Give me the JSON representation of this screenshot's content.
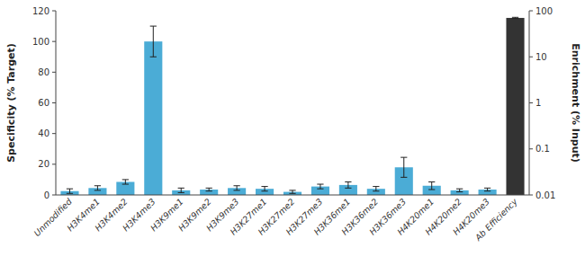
{
  "chart_data": {
    "type": "bar",
    "categories": [
      "Unmodified",
      "H3K4me1",
      "H3K4me2",
      "H3K4me3",
      "H3K9me1",
      "H3K9me2",
      "H3K9me3",
      "H3K27me1",
      "H3K27me2",
      "H3K27me3",
      "H3K36me1",
      "H3K36me2",
      "H3K36me3",
      "H4K20me1",
      "H4K20me2",
      "H4K20me3",
      "Ab Efficiency"
    ],
    "series": [
      {
        "color": "#4bacd6",
        "values": [
          2.5,
          4.5,
          8.5,
          100.0,
          3.0,
          3.5,
          4.5,
          4.0,
          2.0,
          5.5,
          6.5,
          4.0,
          18.0,
          6.0,
          3.0,
          3.5,
          null
        ],
        "errors": [
          1.5,
          1.5,
          1.5,
          10.0,
          1.5,
          1.0,
          1.5,
          1.5,
          1.0,
          1.5,
          2.0,
          1.5,
          6.5,
          2.5,
          1.0,
          1.0,
          null
        ]
      },
      {
        "color": "#333333",
        "axis": "y2",
        "values": [
          null,
          null,
          null,
          null,
          null,
          null,
          null,
          null,
          null,
          null,
          null,
          null,
          null,
          null,
          null,
          null,
          70.0
        ],
        "errors": [
          null,
          null,
          null,
          null,
          null,
          null,
          null,
          null,
          null,
          null,
          null,
          null,
          null,
          null,
          null,
          null,
          2.0
        ]
      }
    ],
    "ylabel": "Specificity (% Target)",
    "y2label": "Enrichment (% Input)",
    "ylim": [
      0,
      120
    ],
    "yticks": [
      0,
      20,
      40,
      60,
      80,
      100,
      120
    ],
    "y2lim": [
      0.01,
      100
    ],
    "y2ticks": [
      100,
      10,
      1,
      0.1,
      0.01
    ],
    "log": "y2",
    "grid": false
  }
}
